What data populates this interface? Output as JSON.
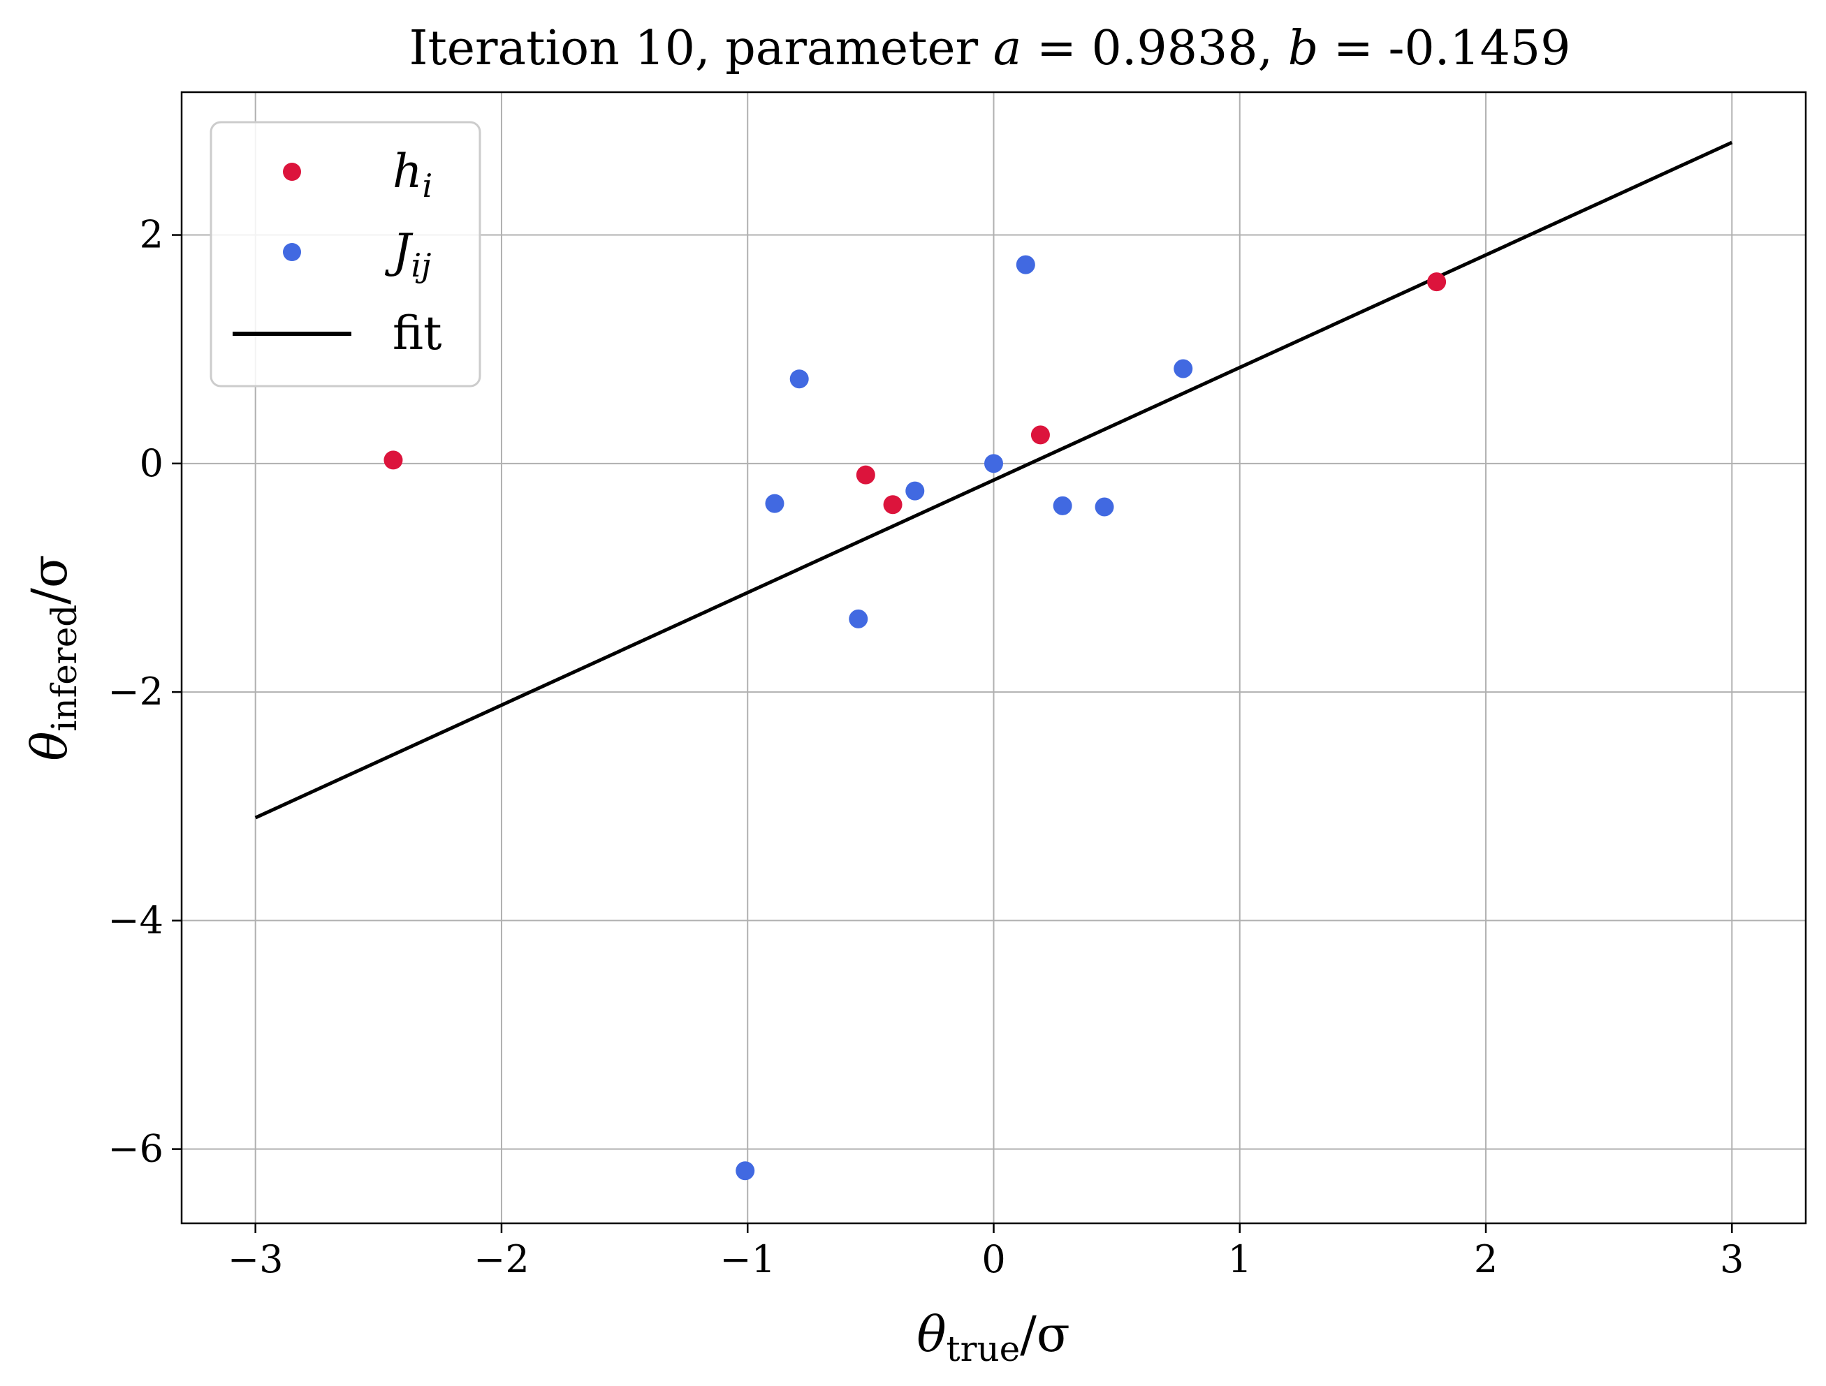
{
  "chart_data": {
    "type": "scatter",
    "title": {
      "prefix": "Iteration 10, parameter ",
      "a_symbol": "a",
      "a_value": " = 0.9838, ",
      "b_symbol": "b",
      "b_value": " = -0.1459"
    },
    "xlabel": {
      "symbol": "θ",
      "subscript": "true",
      "suffix": "/σ"
    },
    "ylabel": {
      "symbol": "θ",
      "subscript": "infered",
      "suffix": "/σ"
    },
    "xlim": [
      -3.3,
      3.3
    ],
    "ylim": [
      -6.65,
      3.25
    ],
    "x_ticks": [
      -3,
      -2,
      -1,
      0,
      1,
      2,
      3
    ],
    "y_ticks": [
      -6,
      -4,
      -2,
      0,
      2
    ],
    "x_tick_labels": [
      "−3",
      "−2",
      "−1",
      "0",
      "1",
      "2",
      "3"
    ],
    "y_tick_labels": [
      "−6",
      "−4",
      "−2",
      "0",
      "2"
    ],
    "grid": true,
    "legend_position": "top-left",
    "series": [
      {
        "name": "h",
        "name_subscript": "i",
        "kind": "scatter",
        "color": "#dc143c",
        "points": [
          {
            "x": -2.44,
            "y": 0.03
          },
          {
            "x": -0.52,
            "y": -0.1
          },
          {
            "x": -0.41,
            "y": -0.36
          },
          {
            "x": 0.19,
            "y": 0.25
          },
          {
            "x": 1.8,
            "y": 1.59
          }
        ]
      },
      {
        "name": "J",
        "name_subscript": "ij",
        "kind": "scatter",
        "color": "#4169e1",
        "points": [
          {
            "x": 0.13,
            "y": 1.74
          },
          {
            "x": -0.79,
            "y": 0.74
          },
          {
            "x": 0.77,
            "y": 0.83
          },
          {
            "x": -0.89,
            "y": -0.35
          },
          {
            "x": -0.32,
            "y": -0.24
          },
          {
            "x": 0.0,
            "y": 0.0
          },
          {
            "x": 0.28,
            "y": -0.37
          },
          {
            "x": 0.45,
            "y": -0.38
          },
          {
            "x": -0.55,
            "y": -1.36
          },
          {
            "x": -1.01,
            "y": -6.19
          }
        ]
      },
      {
        "name": "fit",
        "kind": "line",
        "color": "#000000",
        "points": [
          {
            "x": -3.0,
            "y": -3.1
          },
          {
            "x": 3.0,
            "y": 2.81
          }
        ]
      }
    ]
  }
}
